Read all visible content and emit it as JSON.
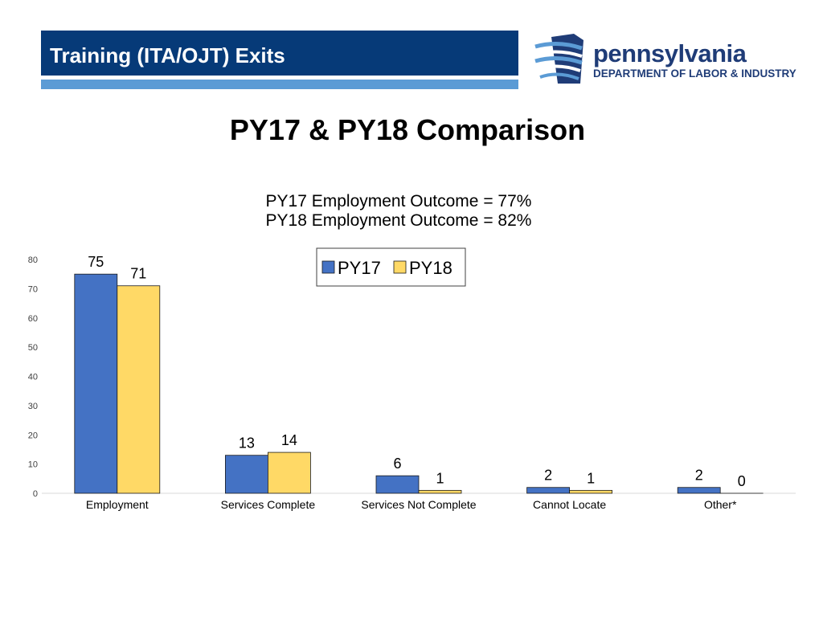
{
  "header": {
    "title": "Training (ITA/OJT) Exits",
    "bar_color": "#063a78",
    "stripe_color": "#5b9bd5"
  },
  "logo": {
    "name": "pennsylvania",
    "department": "DEPARTMENT OF LABOR & INDUSTRY",
    "color": "#1f3c77"
  },
  "slide_title": "PY17 & PY18 Comparison",
  "chart_data": {
    "type": "bar",
    "title_lines": [
      "PY17 Employment Outcome = 77%",
      "PY18 Employment Outcome = 82%"
    ],
    "categories": [
      "Employment",
      "Services Complete",
      "Services Not Complete",
      "Cannot Locate",
      "Other*"
    ],
    "series": [
      {
        "name": "PY17",
        "values": [
          75,
          13,
          6,
          2,
          2
        ],
        "color": "#4472c4"
      },
      {
        "name": "PY18",
        "values": [
          71,
          14,
          1,
          1,
          0
        ],
        "color": "#ffd966"
      }
    ],
    "ylim": [
      0,
      80
    ],
    "yticks": [
      0,
      10,
      20,
      30,
      40,
      50,
      60,
      70,
      80
    ],
    "xlabel": "",
    "ylabel": "",
    "grid": false,
    "legend_position": "top-center"
  }
}
